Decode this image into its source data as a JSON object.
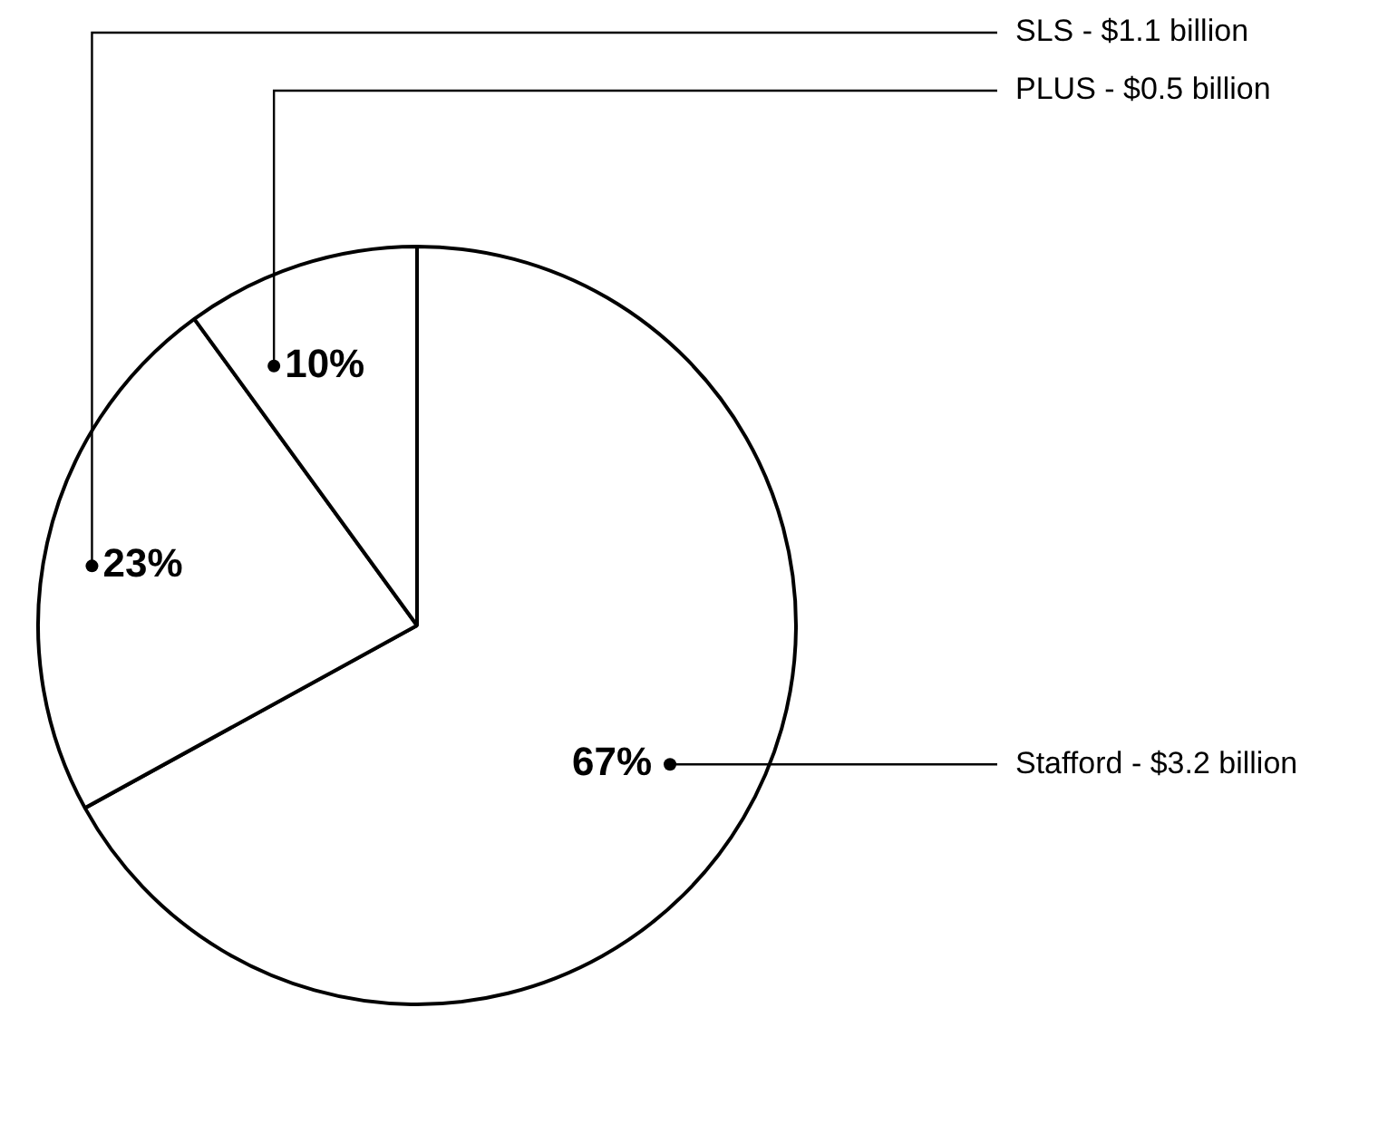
{
  "chart_data": {
    "type": "pie",
    "categories": [
      "Stafford - $3.2 billion",
      "SLS - $1.1 billion",
      "PLUS - $0.5 billion"
    ],
    "values": [
      67,
      23,
      10
    ],
    "colors": [
      "#ffffff",
      "#ffffff",
      "#ffffff"
    ],
    "value_labels": [
      "67%",
      "23%",
      "10%"
    ],
    "legend": false
  }
}
